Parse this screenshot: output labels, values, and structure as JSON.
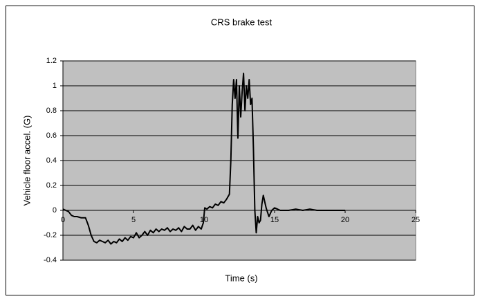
{
  "chart_data": {
    "type": "line",
    "title": "CRS brake test",
    "x_label": "Time (s)",
    "y_label": "Vehicle floor accel. (G)",
    "x": [
      0,
      0.2,
      0.4,
      0.6,
      0.8,
      1.0,
      1.3,
      1.6,
      1.8,
      2.0,
      2.2,
      2.4,
      2.6,
      2.8,
      3.0,
      3.2,
      3.4,
      3.6,
      3.8,
      4.0,
      4.2,
      4.4,
      4.6,
      4.8,
      5.0,
      5.2,
      5.4,
      5.6,
      5.8,
      6.0,
      6.2,
      6.4,
      6.6,
      6.8,
      7.0,
      7.2,
      7.4,
      7.6,
      7.8,
      8.0,
      8.2,
      8.4,
      8.6,
      8.8,
      9.0,
      9.2,
      9.4,
      9.6,
      9.8,
      9.95,
      10.05,
      10.2,
      10.4,
      10.6,
      10.8,
      11.0,
      11.2,
      11.4,
      11.6,
      11.8,
      11.9,
      12.0,
      12.1,
      12.2,
      12.3,
      12.4,
      12.5,
      12.6,
      12.7,
      12.8,
      12.9,
      13.0,
      13.1,
      13.2,
      13.3,
      13.4,
      13.5,
      13.6,
      13.7,
      13.8,
      13.9,
      14.0,
      14.1,
      14.2,
      14.4,
      14.6,
      14.8,
      15.0,
      15.2,
      15.4,
      15.6,
      16,
      16.5,
      17,
      17.5,
      18,
      18.5,
      19,
      19.5,
      20
    ],
    "series": [
      {
        "name": "Vehicle floor accel.",
        "color": "#000000",
        "values": [
          0.01,
          0,
          -0.01,
          -0.04,
          -0.05,
          -0.05,
          -0.06,
          -0.06,
          -0.12,
          -0.2,
          -0.25,
          -0.26,
          -0.24,
          -0.25,
          -0.26,
          -0.24,
          -0.27,
          -0.25,
          -0.26,
          -0.23,
          -0.25,
          -0.22,
          -0.24,
          -0.21,
          -0.22,
          -0.18,
          -0.22,
          -0.2,
          -0.17,
          -0.2,
          -0.16,
          -0.18,
          -0.15,
          -0.17,
          -0.15,
          -0.16,
          -0.14,
          -0.17,
          -0.15,
          -0.16,
          -0.14,
          -0.17,
          -0.13,
          -0.15,
          -0.15,
          -0.12,
          -0.16,
          -0.13,
          -0.15,
          -0.1,
          0.02,
          0.01,
          0.03,
          0.02,
          0.05,
          0.04,
          0.07,
          0.06,
          0.09,
          0.13,
          0.4,
          0.85,
          1.05,
          0.9,
          1.05,
          0.58,
          1.0,
          0.75,
          0.95,
          1.1,
          0.8,
          1.0,
          0.9,
          1.05,
          0.85,
          0.9,
          0.5,
          0.0,
          -0.18,
          -0.05,
          -0.1,
          -0.08,
          0.05,
          0.12,
          0.02,
          -0.05,
          0.0,
          0.02,
          0.01,
          0,
          0,
          0,
          0.01,
          0,
          0.01,
          0,
          0,
          0,
          0,
          0
        ]
      }
    ],
    "xlim": [
      0,
      25
    ],
    "xticks": [
      0,
      5,
      10,
      15,
      20,
      25
    ],
    "ylim": [
      -0.4,
      1.2
    ],
    "yticks": [
      -0.4,
      -0.2,
      0,
      0.2,
      0.4,
      0.6,
      0.8,
      1,
      1.2
    ],
    "grid": true,
    "plot_background": "#c0c0c0"
  }
}
